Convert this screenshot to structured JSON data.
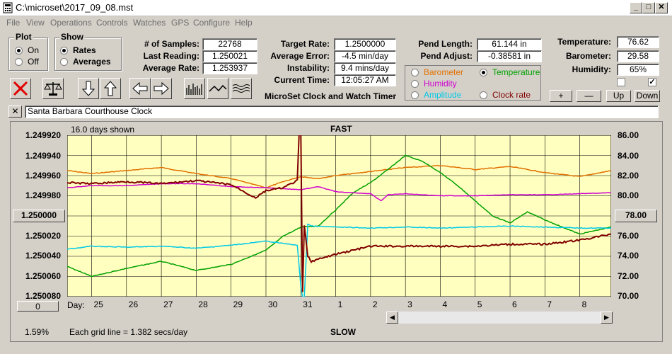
{
  "window": {
    "title": "C:\\microset\\2017_09_08.mst"
  },
  "menu": [
    "File",
    "View",
    "Operations",
    "Controls",
    "Watches",
    "GPS",
    "Configure",
    "Help"
  ],
  "plot": {
    "title": "Plot",
    "on": "On",
    "off": "Off",
    "selected": "On"
  },
  "show": {
    "title": "Show",
    "rates": "Rates",
    "averages": "Averages",
    "selected": "Rates"
  },
  "stats": {
    "samples_label": "# of Samples:",
    "samples": "22768",
    "last_label": "Last Reading:",
    "last": "1.250021",
    "avg_label": "Average Rate:",
    "avg": "1.253937",
    "target_label": "Target Rate:",
    "target": "1.2500000",
    "avgerr_label": "Average Error:",
    "avgerr": "-4.5 min/day",
    "instab_label": "Instability:",
    "instab": "9.4 mins/day",
    "time_label": "Current Time:",
    "time": "12:05:27 AM",
    "pendlen_label": "Pend Length:",
    "pendlen": "61.144 in",
    "pendadj_label": "Pend Adjust:",
    "pendadj": "-0.38581 in",
    "temp_label": "Temperature:",
    "temp": "76.62",
    "baro_label": "Barometer:",
    "baro": "29.58",
    "hum_label": "Humidity:",
    "hum": "65%"
  },
  "app_title": "MicroSet Clock and Watch Timer",
  "sensor": {
    "options": [
      {
        "label": "Barometer",
        "color": "#e07000"
      },
      {
        "label": "Temperature",
        "color": "#00a000"
      },
      {
        "label": "Humidity",
        "color": "#d000d0"
      },
      {
        "label": "Amplitude",
        "color": "#00c8e8"
      },
      {
        "label": "Clock rate",
        "color": "#800000"
      }
    ],
    "selected": "Temperature"
  },
  "scale_buttons": {
    "plus": "+",
    "minus": "—",
    "up": "Up",
    "down": "Down"
  },
  "checkboxes": [
    {
      "checked": false
    },
    {
      "checked": true
    }
  ],
  "close_x": "✕",
  "clock_name": "Santa Barbara Courthouse Clock",
  "chart_header": {
    "days_shown": "16.0 days shown",
    "fast": "FAST",
    "slow": "SLOW",
    "grid_note": "Each grid line = 1.382 secs/day",
    "day_label": "Day:",
    "percent": "1.59%"
  },
  "left_buttons": {
    "center": "1.250000",
    "zero": "0"
  },
  "right_button": "78.00",
  "chart_data": {
    "type": "line",
    "x_ticks": [
      "25",
      "26",
      "27",
      "28",
      "29",
      "30",
      "31",
      "1",
      "2",
      "3",
      "4",
      "5",
      "6",
      "7",
      "8"
    ],
    "y_left_ticks": [
      "1.249920",
      "1.249940",
      "1.249960",
      "1.249980",
      "1.250000",
      "1.250020",
      "1.250040",
      "1.250060",
      "1.250080"
    ],
    "y_left_range": [
      1.24992,
      1.25008
    ],
    "y_right_ticks": [
      "86.00",
      "84.00",
      "82.00",
      "80.00",
      "78.00",
      "76.00",
      "74.00",
      "72.00",
      "70.00"
    ],
    "y_right_range": [
      70,
      86
    ],
    "grid": true,
    "series": [
      {
        "name": "Barometer",
        "color": "#e07000",
        "x": [
          24.3,
          25,
          26,
          27,
          28,
          29,
          30,
          30.5,
          31,
          31.5,
          32,
          33,
          34,
          35,
          36,
          37,
          38,
          39,
          39.9
        ],
        "y": [
          82.5,
          82.2,
          82.5,
          82.8,
          82.2,
          81.7,
          80.8,
          81.4,
          81.9,
          81.7,
          82.0,
          82.4,
          82.8,
          83.0,
          82.6,
          82.9,
          82.3,
          81.9,
          82.5
        ]
      },
      {
        "name": "Temperature",
        "color": "#00a000",
        "x": [
          24.3,
          25,
          26,
          27,
          28,
          29,
          30,
          30.5,
          31,
          31.5,
          32,
          32.5,
          33,
          33.5,
          34,
          34.5,
          35,
          35.5,
          36,
          36.5,
          37,
          37.5,
          38,
          38.5,
          39,
          39.5,
          39.9
        ],
        "y": [
          73.0,
          72.0,
          72.8,
          73.5,
          72.6,
          73.2,
          74.6,
          76.0,
          76.9,
          77.0,
          78.6,
          80.3,
          81.3,
          82.6,
          84.0,
          83.4,
          82.3,
          81.0,
          79.5,
          78.0,
          77.3,
          78.4,
          77.6,
          76.9,
          76.2,
          76.6,
          76.9
        ]
      },
      {
        "name": "Humidity",
        "color": "#d000d0",
        "x": [
          24.3,
          25,
          26,
          27,
          28,
          29,
          30,
          31,
          31.5,
          32,
          33,
          33.3,
          33.5,
          34,
          35,
          36,
          37,
          38,
          39,
          39.9
        ],
        "y": [
          80.8,
          81.0,
          81.0,
          81.2,
          81.2,
          80.9,
          80.8,
          80.6,
          80.9,
          80.4,
          80.2,
          79.5,
          80.1,
          80.2,
          80.0,
          80.0,
          80.1,
          80.1,
          80.2,
          80.3
        ]
      },
      {
        "name": "Amplitude",
        "color": "#00c8e8",
        "x": [
          24.3,
          25,
          26,
          27,
          28,
          29,
          30,
          30.9,
          31.0,
          31.05,
          31.1,
          31.2,
          31.3,
          32,
          33,
          34,
          35,
          36,
          37,
          38,
          39,
          39.9
        ],
        "y": [
          74.7,
          75.0,
          74.9,
          75.0,
          74.8,
          75.1,
          75.5,
          75.1,
          71.0,
          70.0,
          70.0,
          77.2,
          77.0,
          76.9,
          76.8,
          76.9,
          76.8,
          76.9,
          77.0,
          76.9,
          76.8,
          76.8
        ]
      },
      {
        "name": "Clock rate",
        "color": "#800000",
        "x": [
          24.3,
          25,
          26,
          27,
          28,
          29,
          29.7,
          30,
          30.5,
          30.9,
          30.95,
          31.0,
          31.05,
          31.1,
          31.2,
          31.3,
          32,
          33,
          34,
          35,
          36,
          37,
          38,
          39,
          39.9
        ],
        "y": [
          1.249967,
          1.249968,
          1.249966,
          1.249968,
          1.249965,
          1.249969,
          1.249982,
          1.249975,
          1.249972,
          1.249965,
          1.24992,
          1.24992,
          1.250075,
          1.25001,
          1.25004,
          1.250045,
          1.250038,
          1.25003,
          1.25003,
          1.25003,
          1.25003,
          1.250028,
          1.250028,
          1.250024,
          1.250018
        ]
      }
    ]
  }
}
